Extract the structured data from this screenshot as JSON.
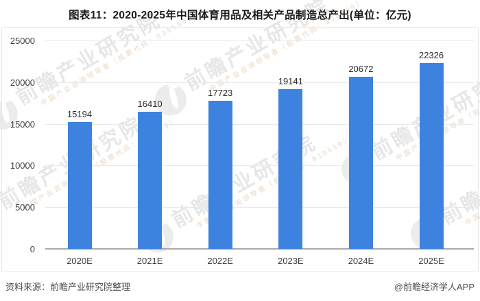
{
  "title": "图表11：2020-2025年中国体育用品及相关产品制造总产出(单位：亿元)",
  "footer": {
    "source": "资料来源：前瞻产业研究院整理",
    "credit": "@前瞻经济学人APP"
  },
  "watermark": {
    "logo_icon": "qianzhan-circle-logo-icon",
    "big_text": "前瞻产业研究院",
    "small_text": "中国产业咨询领导者（股票代码：839599）"
  },
  "colors": {
    "bar": "#3d82df",
    "gridline": "#e9e9e9",
    "zero_axis": "#a8a8a8",
    "panel_border": "#e4e6e8",
    "watermark_gray": "#e7e7e7",
    "watermark_warm": "#ead7c6",
    "text_dark": "#2b2b2b"
  },
  "chart_data": {
    "type": "bar",
    "title": "图表11：2020-2025年中国体育用品及相关产品制造总产出(单位：亿元)",
    "categories": [
      "2020E",
      "2021E",
      "2022E",
      "2023E",
      "2024E",
      "2025E"
    ],
    "values": [
      15194,
      16410,
      17723,
      19141,
      20672,
      22326
    ],
    "xlabel": "",
    "ylabel": "",
    "ylim": [
      0,
      25000
    ],
    "yticks": [
      0,
      5000,
      10000,
      15000,
      20000,
      25000
    ],
    "grid": true,
    "legend": false,
    "data_labels": true
  }
}
